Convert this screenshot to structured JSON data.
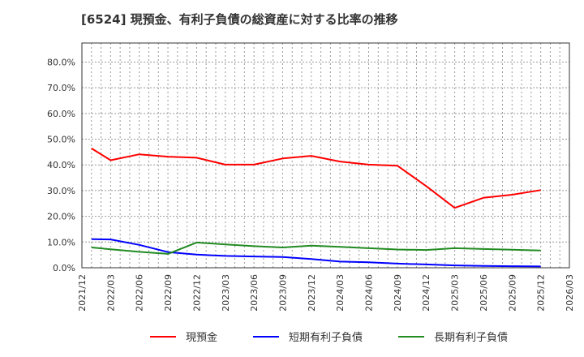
{
  "title": "[6524]  現預金、有利子負債の総資産に対する比率の推移",
  "colors": {
    "cash": "#ff0000",
    "short_debt": "#0000ff",
    "long_debt": "#228b22",
    "grid": "#999999",
    "axis": "#333333"
  },
  "chart_data": {
    "type": "line",
    "title": "[6524]  現預金、有利子負債の総資産に対する比率の推移",
    "xlabel": "",
    "ylabel": "",
    "ylim": [
      0,
      87.4
    ],
    "yticks": [
      "0.0%",
      "10.0%",
      "20.0%",
      "30.0%",
      "40.0%",
      "50.0%",
      "60.0%",
      "70.0%",
      "80.0%"
    ],
    "xticks": [
      "2021/12",
      "2022/03",
      "2022/06",
      "2022/09",
      "2022/12",
      "2023/03",
      "2023/06",
      "2023/09",
      "2023/12",
      "2024/03",
      "2024/06",
      "2024/09",
      "2024/12",
      "2025/03",
      "2025/06",
      "2025/09",
      "2025/12",
      "2026/03"
    ],
    "grid": true,
    "legend_position": "bottom",
    "x": [
      "2022/01",
      "2022/03",
      "2022/06",
      "2022/09",
      "2022/12",
      "2023/03",
      "2023/06",
      "2023/09",
      "2023/12",
      "2024/03",
      "2024/06",
      "2024/09",
      "2024/12",
      "2025/03",
      "2025/06",
      "2025/09",
      "2025/12"
    ],
    "series": [
      {
        "name": "現預金",
        "color": "#ff0000",
        "values": [
          46.4,
          41.8,
          44.1,
          43.2,
          42.8,
          40.1,
          40.1,
          42.5,
          43.5,
          41.3,
          40.1,
          39.7,
          31.8,
          23.3,
          27.2,
          28.4,
          30.2
        ]
      },
      {
        "name": "短期有利子負債",
        "color": "#0000ff",
        "values": [
          11.1,
          11.0,
          8.9,
          6.1,
          5.1,
          4.6,
          4.4,
          4.2,
          3.4,
          2.4,
          2.1,
          1.6,
          1.3,
          0.9,
          0.7,
          0.6,
          0.5
        ]
      },
      {
        "name": "長期有利子負債",
        "color": "#228b22",
        "values": [
          7.9,
          7.2,
          6.2,
          5.4,
          9.8,
          9.1,
          8.4,
          7.9,
          8.6,
          8.1,
          7.6,
          7.1,
          6.9,
          7.6,
          7.3,
          7.0,
          6.7
        ]
      }
    ]
  },
  "legend": [
    {
      "label": "現預金",
      "color": "#ff0000"
    },
    {
      "label": "短期有利子負債",
      "color": "#0000ff"
    },
    {
      "label": "長期有利子負債",
      "color": "#228b22"
    }
  ]
}
